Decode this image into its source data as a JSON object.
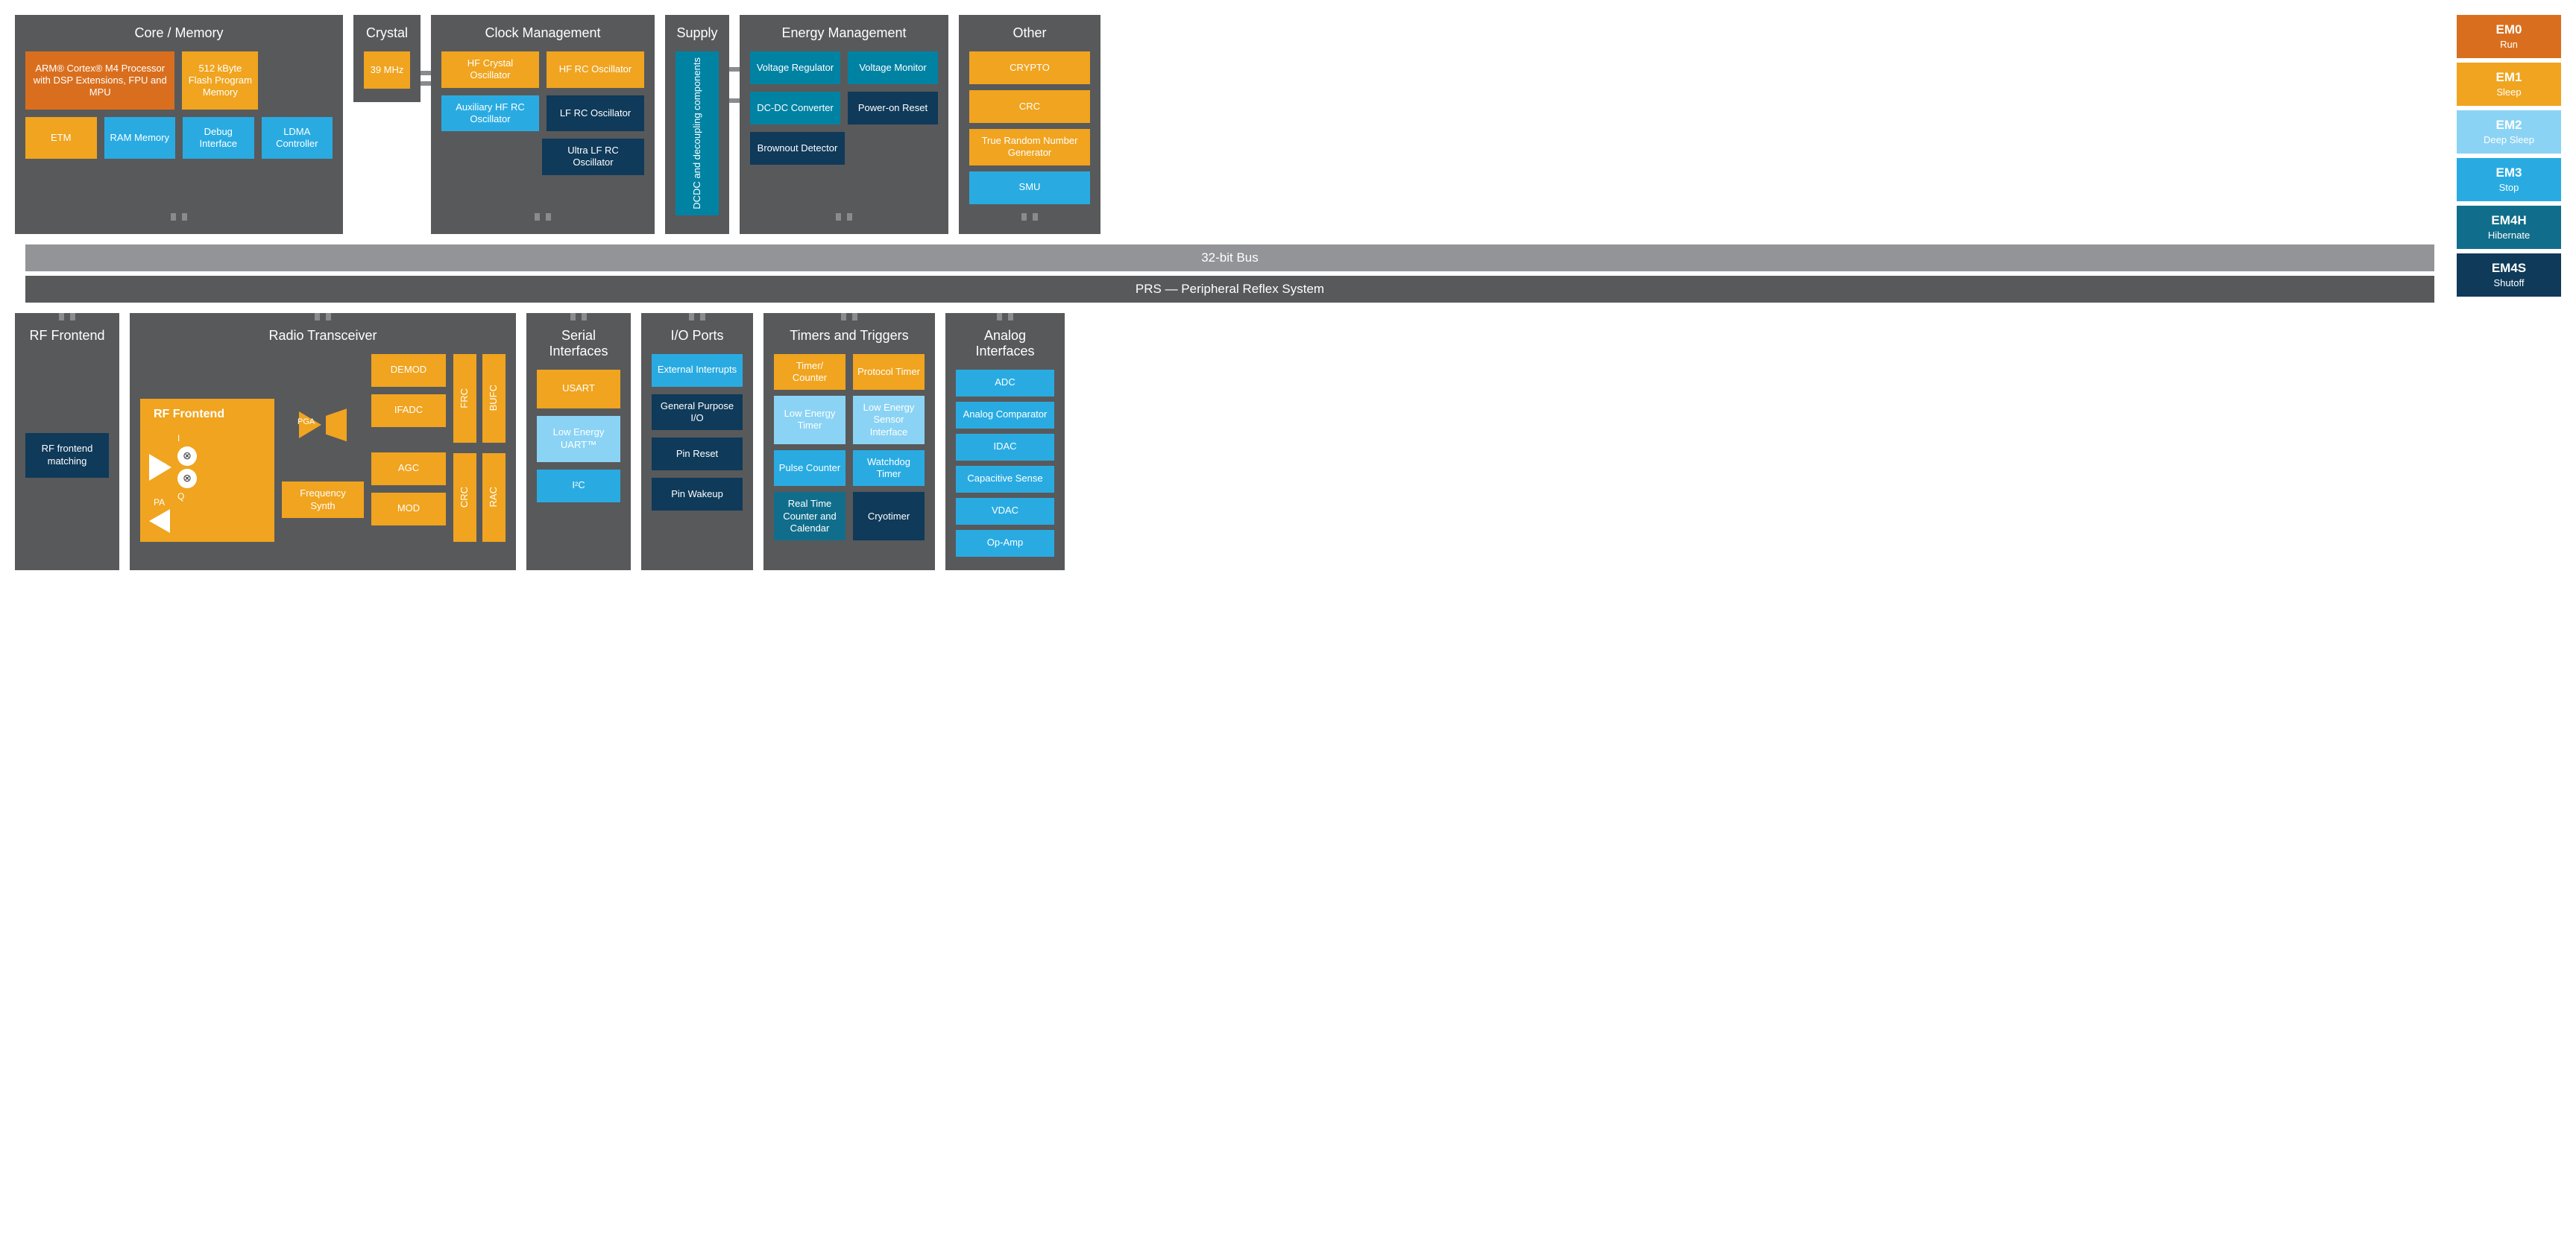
{
  "colors": {
    "panel_bg": "#58595b",
    "bus_bg": "#929497",
    "em0_orange": "#d96f1e",
    "em1_amber": "#f0a41f",
    "em2_light": "#8bd3f4",
    "em3_blue": "#29abe2",
    "em4h_teal": "#106e8c",
    "em4s_navy": "#0f3a5a",
    "energy_teal": "#0082a3",
    "text_white": "#ffffff"
  },
  "bus": "32-bit Bus",
  "prs": "PRS — Peripheral Reflex System",
  "legend": [
    {
      "code": "EM0",
      "label": "Run",
      "color": "#d96f1e"
    },
    {
      "code": "EM1",
      "label": "Sleep",
      "color": "#f0a41f"
    },
    {
      "code": "EM2",
      "label": "Deep Sleep",
      "color": "#8bd3f4"
    },
    {
      "code": "EM3",
      "label": "Stop",
      "color": "#29abe2"
    },
    {
      "code": "EM4H",
      "label": "Hibernate",
      "color": "#106e8c"
    },
    {
      "code": "EM4S",
      "label": "Shutoff",
      "color": "#0f3a5a"
    }
  ],
  "panels": {
    "core": {
      "title": "Core / Memory",
      "cpu": "ARM® Cortex® M4 Processor with DSP Extensions, FPU and MPU",
      "flash": "512 kByte Flash Program Memory",
      "etm": "ETM",
      "ram": "RAM Memory",
      "debug": "Debug Interface",
      "ldma": "LDMA Controller"
    },
    "crystal": {
      "title": "Crystal",
      "freq": "39 MHz"
    },
    "clock": {
      "title": "Clock Management",
      "hf_xtal": "HF Crystal Oscillator",
      "hf_rc": "HF RC Oscillator",
      "aux_rc": "Auxiliary HF RC Oscillator",
      "lf_rc": "LF RC Oscillator",
      "ulf_rc": "Ultra LF RC Oscillator"
    },
    "supply": {
      "title": "Supply",
      "label": "DCDC and decoupling components"
    },
    "energy": {
      "title": "Energy Management",
      "vreg": "Voltage Regulator",
      "vmon": "Voltage Monitor",
      "dcdc": "DC-DC Converter",
      "por": "Power-on Reset",
      "brown": "Brownout Detector"
    },
    "other": {
      "title": "Other",
      "crypto": "CRYPTO",
      "crc": "CRC",
      "trng": "True Random Number Generator",
      "smu": "SMU"
    },
    "rffront": {
      "title": "RF Frontend",
      "match": "RF frontend matching"
    },
    "radio": {
      "title": "Radio Transceiver",
      "inner_title": "RF Frontend",
      "lna": "LNA",
      "pa": "PA",
      "pga": "PGA",
      "i": "I",
      "q": "Q",
      "demod": "DEMOD",
      "ifadc": "IFADC",
      "agc": "AGC",
      "mod": "MOD",
      "fsynth": "Frequency Synth",
      "frc": "FRC",
      "bufc": "BUFC",
      "crc": "CRC",
      "rac": "RAC"
    },
    "serial": {
      "title": "Serial Interfaces",
      "usart": "USART",
      "leuart": "Low Energy UART™",
      "i2c": "I²C"
    },
    "io": {
      "title": "I/O Ports",
      "ext": "External Interrupts",
      "gpio": "General Purpose I/O",
      "pinrst": "Pin Reset",
      "pinwake": "Pin Wakeup"
    },
    "timers": {
      "title": "Timers and Triggers",
      "timer": "Timer/ Counter",
      "proto": "Protocol Timer",
      "letimer": "Low Energy Timer",
      "lesense": "Low Energy Sensor Interface",
      "pulse": "Pulse Counter",
      "wdog": "Watchdog Timer",
      "rtcc": "Real Time Counter and Calendar",
      "cryo": "Cryotimer"
    },
    "analog": {
      "title": "Analog Interfaces",
      "adc": "ADC",
      "acmp": "Analog Comparator",
      "idac": "IDAC",
      "csen": "Capacitive Sense",
      "vdac": "VDAC",
      "opamp": "Op-Amp"
    }
  }
}
